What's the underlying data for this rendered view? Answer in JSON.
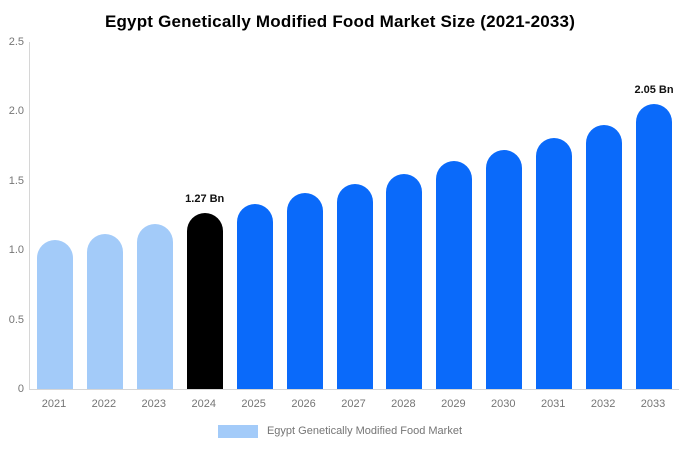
{
  "title": "Egypt Genetically Modified Food Market Size (2021-2033)",
  "legend": {
    "label": "Egypt Genetically Modified Food Market",
    "swatch_color": "#A3CBF9"
  },
  "colors": {
    "historical_bar": "#A3CBF9",
    "highlight_bar": "#000000",
    "forecast_bar": "#0A6AFA",
    "axis_line": "#D6D6D6",
    "tick_text": "#757575",
    "title_text": "#000000",
    "annotation_text": "#111111",
    "background": "#FFFFFF"
  },
  "chart_data": {
    "type": "bar",
    "title": "Egypt Genetically Modified Food Market Size (2021-2033)",
    "xlabel": "",
    "ylabel": "",
    "categories": [
      "2021",
      "2022",
      "2023",
      "2024",
      "2025",
      "2026",
      "2027",
      "2028",
      "2029",
      "2030",
      "2031",
      "2032",
      "2033"
    ],
    "values": [
      1.07,
      1.12,
      1.19,
      1.27,
      1.33,
      1.41,
      1.48,
      1.55,
      1.64,
      1.72,
      1.81,
      1.9,
      2.05
    ],
    "bar_colors": [
      "#A3CBF9",
      "#A3CBF9",
      "#A3CBF9",
      "#000000",
      "#0A6AFA",
      "#0A6AFA",
      "#0A6AFA",
      "#0A6AFA",
      "#0A6AFA",
      "#0A6AFA",
      "#0A6AFA",
      "#0A6AFA",
      "#0A6AFA"
    ],
    "ylim": [
      0,
      2.5
    ],
    "yticks": [
      "2.5",
      "2.0",
      "1.5",
      "1.0",
      "0.5",
      "0"
    ],
    "grid": false,
    "legend_position": "bottom",
    "legend_entries": [
      "Egypt Genetically Modified Food Market"
    ],
    "annotations": [
      {
        "index": 3,
        "category": "2024",
        "text": "1.27 Bn"
      },
      {
        "index": 12,
        "category": "2033",
        "text": "2.05 Bn"
      }
    ]
  }
}
